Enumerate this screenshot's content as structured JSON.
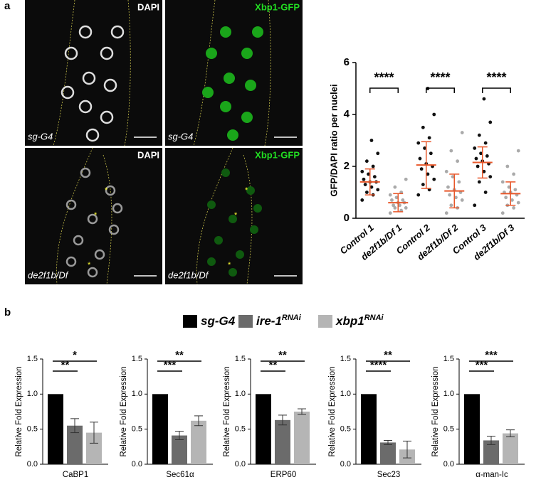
{
  "panel_labels": [
    "a",
    "b"
  ],
  "images": [
    {
      "stain": "DAPI",
      "genotype": "sg-G4",
      "stain_color": "#ffffff"
    },
    {
      "stain": "Xbp1-GFP",
      "genotype": "sg-G4",
      "stain_color": "#22dd22"
    },
    {
      "stain": "DAPI",
      "genotype": "de2f1b/Df",
      "stain_color": "#ffffff",
      "marker": "*"
    },
    {
      "stain": "Xbp1-GFP",
      "genotype": "de2f1b/Df",
      "stain_color": "#22dd22",
      "marker": "*"
    }
  ],
  "legend": [
    {
      "name": "sg-G4",
      "color": "#000000"
    },
    {
      "name": "ire-1",
      "superscript": "RNAi",
      "color": "#6b6b6b"
    },
    {
      "name": "xbp1",
      "superscript": "RNAi",
      "color": "#b5b5b5"
    }
  ],
  "chart_data": [
    {
      "type": "strip",
      "ylabel": "GFP/DAPI ratio per nuclei",
      "categories": [
        "Control 1",
        "de2f1b/Df 1",
        "Control 2",
        "de2f1b/Df 2",
        "Control 3",
        "de2f1b/Df 3"
      ],
      "colors": [
        "#111111",
        "#aaaaaa",
        "#111111",
        "#aaaaaa",
        "#111111",
        "#aaaaaa"
      ],
      "points": [
        [
          0.7,
          0.9,
          1.0,
          1.1,
          1.2,
          1.3,
          1.4,
          1.4,
          1.5,
          1.6,
          1.7,
          1.8,
          2.0,
          2.2,
          2.5,
          3.0
        ],
        [
          0.2,
          0.3,
          0.4,
          0.4,
          0.5,
          0.5,
          0.6,
          0.6,
          0.7,
          0.7,
          0.8,
          0.9,
          1.0,
          1.2,
          1.5
        ],
        [
          0.9,
          1.1,
          1.3,
          1.5,
          1.7,
          1.9,
          2.0,
          2.1,
          2.3,
          2.5,
          2.7,
          2.9,
          3.1,
          3.5,
          4.0,
          5.0
        ],
        [
          0.2,
          0.4,
          0.5,
          0.7,
          0.8,
          0.9,
          1.0,
          1.1,
          1.2,
          1.4,
          1.6,
          1.8,
          2.2,
          2.6,
          3.3
        ],
        [
          0.5,
          1.0,
          1.4,
          1.6,
          1.8,
          2.0,
          2.1,
          2.2,
          2.3,
          2.4,
          2.5,
          2.7,
          2.9,
          3.2,
          3.7,
          4.6
        ],
        [
          0.2,
          0.4,
          0.5,
          0.6,
          0.7,
          0.8,
          0.9,
          1.0,
          1.0,
          1.1,
          1.2,
          1.4,
          1.7,
          2.0,
          2.6
        ]
      ],
      "means": [
        1.4,
        0.6,
        2.05,
        1.05,
        2.15,
        0.95
      ],
      "sds": [
        0.5,
        0.35,
        0.9,
        0.65,
        0.6,
        0.45
      ],
      "mean_color": "#e8572a",
      "annotations": [
        {
          "text": "****",
          "from": 0,
          "to": 1
        },
        {
          "text": "****",
          "from": 2,
          "to": 3
        },
        {
          "text": "****",
          "from": 4,
          "to": 5
        }
      ],
      "ylim": [
        0,
        6
      ],
      "yticks": [
        0,
        2,
        4,
        6
      ]
    },
    {
      "type": "bar",
      "xlabel": "CaBP1",
      "ylabel": "Relative Fold Expression",
      "values": [
        1.0,
        0.55,
        0.45
      ],
      "errors": [
        null,
        0.1,
        0.15
      ],
      "annotations": [
        {
          "text": "**",
          "from": 0,
          "to": 1
        },
        {
          "text": "*",
          "from": 0,
          "to": 2
        }
      ],
      "ylim": [
        0,
        1.5
      ],
      "yticks": [
        {
          "value": 0,
          "label": "0.0"
        },
        {
          "value": 0.5,
          "label": "0.5"
        },
        {
          "value": 1,
          "label": "1.0"
        },
        {
          "value": 1.5,
          "label": "1.5"
        }
      ]
    },
    {
      "type": "bar",
      "xlabel": "Sec61α",
      "ylabel": "Relative Fold Expression",
      "values": [
        1.0,
        0.41,
        0.62
      ],
      "errors": [
        null,
        0.06,
        0.07
      ],
      "annotations": [
        {
          "text": "***",
          "from": 0,
          "to": 1
        },
        {
          "text": "**",
          "from": 0,
          "to": 2
        }
      ],
      "ylim": [
        0,
        1.5
      ],
      "yticks": [
        {
          "value": 0,
          "label": "0.0"
        },
        {
          "value": 0.5,
          "label": "0.5"
        },
        {
          "value": 1,
          "label": "1.0"
        },
        {
          "value": 1.5,
          "label": "1.5"
        }
      ]
    },
    {
      "type": "bar",
      "xlabel": "ERP60",
      "ylabel": "Relative Fold Expression",
      "values": [
        1.0,
        0.63,
        0.75
      ],
      "errors": [
        null,
        0.07,
        0.04
      ],
      "annotations": [
        {
          "text": "**",
          "from": 0,
          "to": 1
        },
        {
          "text": "**",
          "from": 0,
          "to": 2
        }
      ],
      "ylim": [
        0,
        1.5
      ],
      "yticks": [
        {
          "value": 0,
          "label": "0.0"
        },
        {
          "value": 0.5,
          "label": "0.5"
        },
        {
          "value": 1,
          "label": "1.0"
        },
        {
          "value": 1.5,
          "label": "1.5"
        }
      ]
    },
    {
      "type": "bar",
      "xlabel": "Sec23",
      "ylabel": "Relative Fold Expression",
      "values": [
        1.0,
        0.31,
        0.21
      ],
      "errors": [
        null,
        0.03,
        0.12
      ],
      "annotations": [
        {
          "text": "****",
          "from": 0,
          "to": 1
        },
        {
          "text": "**",
          "from": 0,
          "to": 2
        }
      ],
      "ylim": [
        0,
        1.5
      ],
      "yticks": [
        {
          "value": 0,
          "label": "0.0"
        },
        {
          "value": 0.5,
          "label": "0.5"
        },
        {
          "value": 1,
          "label": "1.0"
        },
        {
          "value": 1.5,
          "label": "1.5"
        }
      ]
    },
    {
      "type": "bar",
      "xlabel": "α-man-Ic",
      "ylabel": "Relative Fold Expression",
      "values": [
        1.0,
        0.34,
        0.44
      ],
      "errors": [
        null,
        0.06,
        0.05
      ],
      "annotations": [
        {
          "text": "***",
          "from": 0,
          "to": 1
        },
        {
          "text": "***",
          "from": 0,
          "to": 2
        }
      ],
      "ylim": [
        0,
        1.5
      ],
      "yticks": [
        {
          "value": 0,
          "label": "0.0"
        },
        {
          "value": 0.5,
          "label": "0.5"
        },
        {
          "value": 1,
          "label": "1.0"
        },
        {
          "value": 1.5,
          "label": "1.5"
        }
      ]
    }
  ]
}
